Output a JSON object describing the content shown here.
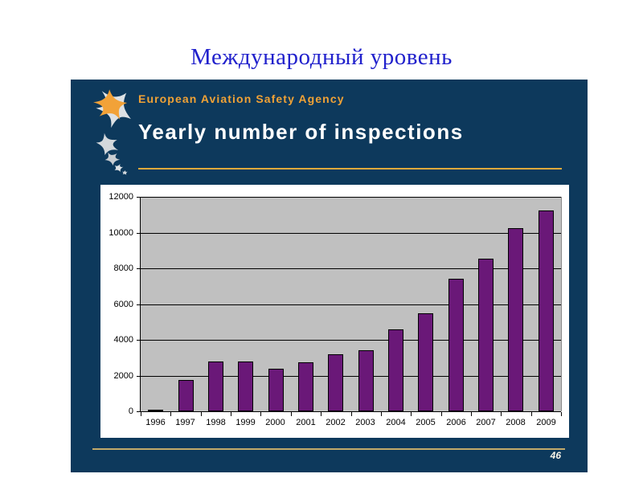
{
  "page": {
    "title": "Международный уровень",
    "title_color": "#2121cc"
  },
  "slide": {
    "agency_name": "European Aviation Safety Agency",
    "title": "Yearly number of inspections",
    "page_number": "46",
    "colors": {
      "background_navy": "#0d395c",
      "agency_orange": "#f0a236",
      "header_underline_gold": "#dfa93c",
      "footer_line_tan": "#c2aa6a",
      "logo_orange": "#f2a238",
      "logo_silver": "#d3d8dc"
    }
  },
  "chart_data": {
    "type": "bar",
    "title": "",
    "xlabel": "",
    "ylabel": "",
    "categories": [
      "1996",
      "1997",
      "1998",
      "1999",
      "2000",
      "2001",
      "2002",
      "2003",
      "2004",
      "2005",
      "2006",
      "2007",
      "2008",
      "2009"
    ],
    "values": [
      50,
      1750,
      2800,
      2800,
      2400,
      2750,
      3200,
      3400,
      4600,
      5500,
      7400,
      8550,
      10250,
      11250
    ],
    "ylim": [
      0,
      12000
    ],
    "yticks": [
      0,
      2000,
      4000,
      6000,
      8000,
      10000,
      12000
    ],
    "grid": true,
    "legend": "none",
    "bar_color": "#6a1878",
    "plot_background": "#c0c0c0",
    "gridline_color": "#000000"
  }
}
